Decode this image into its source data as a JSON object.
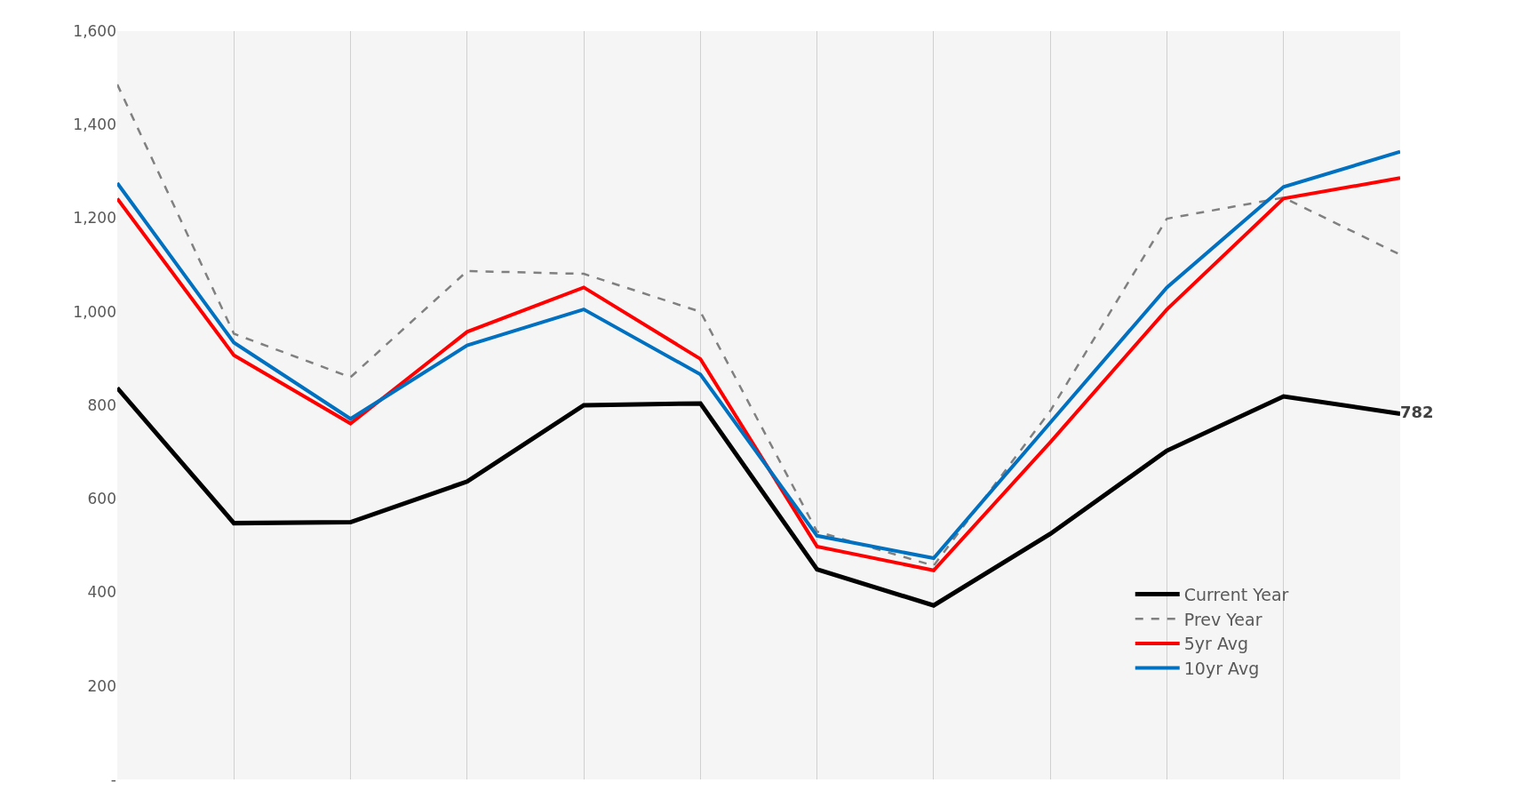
{
  "chart_data": {
    "type": "line",
    "categories": [
      null,
      null,
      null,
      null,
      null,
      null,
      null,
      null,
      null,
      null,
      null,
      null
    ],
    "series": [
      {
        "name": "Current Year",
        "color": "#000000",
        "values": [
          837,
          548,
          550,
          637,
          800,
          804,
          449,
          372,
          525,
          703,
          819,
          782
        ],
        "value_labels": [
          null,
          null,
          null,
          null,
          null,
          null,
          null,
          null,
          null,
          null,
          null,
          "782"
        ]
      },
      {
        "name": "Prev Year",
        "color": "#808080",
        "line_style": "dashed",
        "values": [
          1486,
          953,
          860,
          1087,
          1081,
          1000,
          530,
          457,
          788,
          1199,
          1244,
          1122
        ]
      },
      {
        "name": "5yr Avg",
        "color": "#ff0000",
        "values": [
          1242,
          907,
          761,
          957,
          1052,
          899,
          498,
          447,
          721,
          1005,
          1242,
          1286
        ]
      },
      {
        "name": "10yr Avg",
        "color": "#0070c0",
        "values": [
          1275,
          934,
          771,
          928,
          1005,
          866,
          521,
          473,
          763,
          1052,
          1267,
          1342
        ]
      }
    ],
    "ylim": [
      0,
      1600
    ],
    "yticks": [
      {
        "value": 0,
        "label": "-"
      },
      200,
      400,
      600,
      800,
      {
        "value": 1000,
        "label": "1,000"
      },
      {
        "value": 1200,
        "label": "1,200"
      },
      {
        "value": 1400,
        "label": "1,400"
      },
      {
        "value": 1600,
        "label": "1,600"
      }
    ],
    "grid": "x",
    "legend": "bottom right",
    "marker": "none",
    "line_style": "solid"
  }
}
